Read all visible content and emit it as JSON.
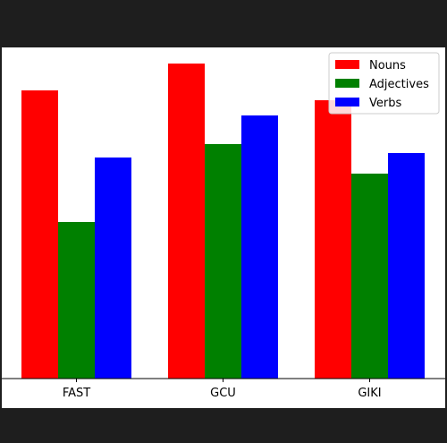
{
  "chart_data": {
    "type": "bar",
    "categories": [
      "FAST",
      "GCU",
      "GIKI"
    ],
    "series": [
      {
        "name": "Nouns",
        "values": [
          322,
          352,
          311
        ],
        "color": "#ff0000"
      },
      {
        "name": "Adjectives",
        "values": [
          175,
          262,
          229
        ],
        "color": "#008000"
      },
      {
        "name": "Verbs",
        "values": [
          247,
          294,
          252
        ],
        "color": "#0000ff"
      }
    ],
    "title": "",
    "xlabel": "",
    "ylabel": "",
    "ylim": [
      0,
      370
    ],
    "y_ticks_shown": false,
    "grid": false,
    "legend_position": "top-right"
  }
}
